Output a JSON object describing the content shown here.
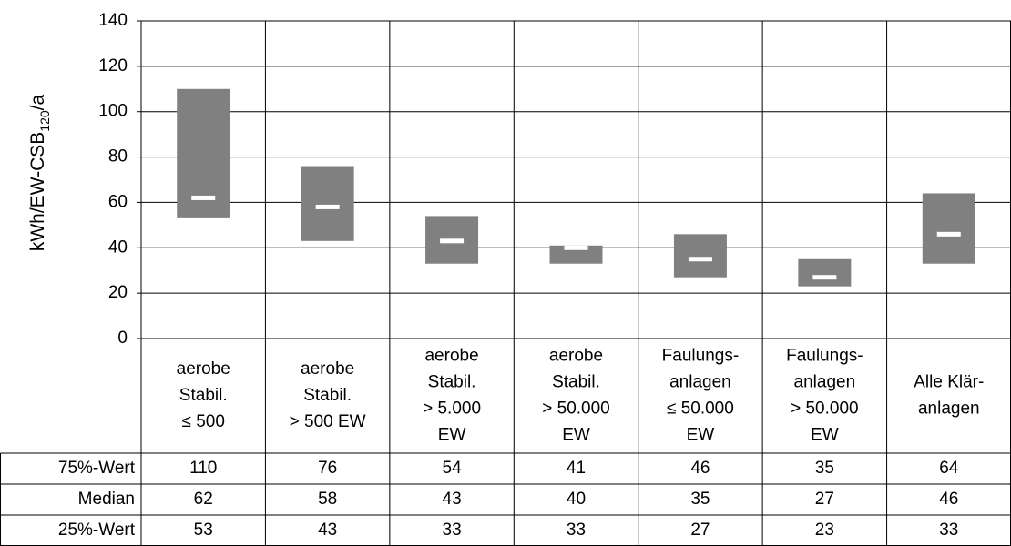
{
  "chart_data": {
    "type": "range_bar",
    "ylabel": [
      "kWh/EW-CSB",
      "120",
      "/a"
    ],
    "categories": [
      [
        "aerobe",
        "Stabil.",
        "≤ 500"
      ],
      [
        "aerobe",
        "Stabil.",
        "> 500 EW"
      ],
      [
        "aerobe",
        "Stabil.",
        "> 5.000",
        "EW"
      ],
      [
        "aerobe",
        "Stabil.",
        "> 50.000",
        "EW"
      ],
      [
        "Faulungs-",
        "anlagen",
        "≤ 50.000",
        "EW"
      ],
      [
        "Faulungs-",
        "anlagen",
        "> 50.000",
        "EW"
      ],
      [
        "Alle Klär-",
        "anlagen"
      ]
    ],
    "series": [
      {
        "name": "75%-Wert",
        "color": "#808080",
        "values": [
          110,
          76,
          54,
          41,
          46,
          35,
          64
        ]
      },
      {
        "name": "Median",
        "color": "#ffffff",
        "values": [
          62,
          58,
          43,
          40,
          35,
          27,
          46
        ]
      },
      {
        "name": "25%-Wert",
        "color": "#808080",
        "values": [
          53,
          43,
          33,
          33,
          27,
          23,
          33
        ]
      }
    ],
    "ylim": [
      0,
      140
    ],
    "yticks": [
      0,
      20,
      40,
      60,
      80,
      100,
      120,
      140
    ],
    "grid": true
  }
}
